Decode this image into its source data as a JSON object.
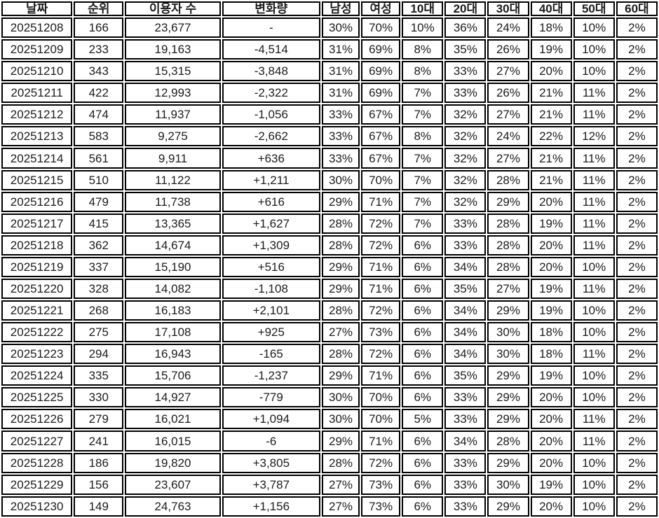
{
  "colors": {
    "text": "#1c1c1c",
    "border": "#000000",
    "background": "#ffffff",
    "weekend_saturday_blue": "#0e16f0",
    "weekend_sunday_red": "#f41212"
  },
  "chart_data": {
    "type": "table",
    "columns": [
      "날짜",
      "순위",
      "이용자 수",
      "변화량",
      "남성",
      "여성",
      "10대",
      "20대",
      "30대",
      "40대",
      "50대",
      "60대"
    ],
    "rows": [
      [
        "20251208",
        "166",
        "23,677",
        "-",
        "30%",
        "70%",
        "10%",
        "36%",
        "24%",
        "18%",
        "10%",
        "2%"
      ],
      [
        "20251209",
        "233",
        "19,163",
        "-4,514",
        "31%",
        "69%",
        "8%",
        "35%",
        "26%",
        "19%",
        "10%",
        "2%"
      ],
      [
        "20251210",
        "343",
        "15,315",
        "-3,848",
        "31%",
        "69%",
        "8%",
        "33%",
        "27%",
        "20%",
        "10%",
        "2%"
      ],
      [
        "20251211",
        "422",
        "12,993",
        "-2,322",
        "31%",
        "69%",
        "7%",
        "33%",
        "26%",
        "21%",
        "11%",
        "2%"
      ],
      [
        "20251212",
        "474",
        "11,937",
        "-1,056",
        "33%",
        "67%",
        "7%",
        "32%",
        "27%",
        "21%",
        "11%",
        "2%"
      ],
      [
        "20251213",
        "583",
        "9,275",
        "-2,662",
        "33%",
        "67%",
        "8%",
        "32%",
        "24%",
        "22%",
        "12%",
        "2%"
      ],
      [
        "20251214",
        "561",
        "9,911",
        "+636",
        "33%",
        "67%",
        "7%",
        "32%",
        "27%",
        "21%",
        "11%",
        "2%"
      ],
      [
        "20251215",
        "510",
        "11,122",
        "+1,211",
        "30%",
        "70%",
        "7%",
        "32%",
        "28%",
        "21%",
        "11%",
        "2%"
      ],
      [
        "20251216",
        "479",
        "11,738",
        "+616",
        "29%",
        "71%",
        "7%",
        "32%",
        "29%",
        "20%",
        "11%",
        "2%"
      ],
      [
        "20251217",
        "415",
        "13,365",
        "+1,627",
        "28%",
        "72%",
        "7%",
        "33%",
        "28%",
        "19%",
        "11%",
        "2%"
      ],
      [
        "20251218",
        "362",
        "14,674",
        "+1,309",
        "28%",
        "72%",
        "6%",
        "33%",
        "28%",
        "20%",
        "11%",
        "2%"
      ],
      [
        "20251219",
        "337",
        "15,190",
        "+516",
        "29%",
        "71%",
        "6%",
        "34%",
        "28%",
        "20%",
        "10%",
        "2%"
      ],
      [
        "20251220",
        "328",
        "14,082",
        "-1,108",
        "29%",
        "71%",
        "6%",
        "35%",
        "27%",
        "19%",
        "11%",
        "2%"
      ],
      [
        "20251221",
        "268",
        "16,183",
        "+2,101",
        "28%",
        "72%",
        "6%",
        "34%",
        "29%",
        "19%",
        "10%",
        "2%"
      ],
      [
        "20251222",
        "275",
        "17,108",
        "+925",
        "27%",
        "73%",
        "6%",
        "34%",
        "30%",
        "18%",
        "10%",
        "2%"
      ],
      [
        "20251223",
        "294",
        "16,943",
        "-165",
        "28%",
        "72%",
        "6%",
        "34%",
        "30%",
        "18%",
        "11%",
        "2%"
      ],
      [
        "20251224",
        "335",
        "15,706",
        "-1,237",
        "29%",
        "71%",
        "6%",
        "35%",
        "29%",
        "19%",
        "10%",
        "2%"
      ],
      [
        "20251225",
        "330",
        "14,927",
        "-779",
        "30%",
        "70%",
        "6%",
        "33%",
        "29%",
        "20%",
        "10%",
        "2%"
      ],
      [
        "20251226",
        "279",
        "16,021",
        "+1,094",
        "30%",
        "70%",
        "5%",
        "33%",
        "29%",
        "20%",
        "11%",
        "2%"
      ],
      [
        "20251227",
        "241",
        "16,015",
        "-6",
        "29%",
        "71%",
        "6%",
        "34%",
        "28%",
        "20%",
        "11%",
        "2%"
      ],
      [
        "20251228",
        "186",
        "19,820",
        "+3,805",
        "28%",
        "72%",
        "6%",
        "33%",
        "29%",
        "20%",
        "10%",
        "2%"
      ],
      [
        "20251229",
        "156",
        "23,607",
        "+3,787",
        "27%",
        "73%",
        "6%",
        "33%",
        "30%",
        "19%",
        "10%",
        "2%"
      ],
      [
        "20251230",
        "149",
        "24,763",
        "+1,156",
        "27%",
        "73%",
        "6%",
        "33%",
        "29%",
        "20%",
        "10%",
        "2%"
      ]
    ],
    "date_text_colors": [
      "default",
      "default",
      "default",
      "default",
      "default",
      "blue",
      "red",
      "default",
      "default",
      "default",
      "default",
      "default",
      "blue",
      "red",
      "default",
      "default",
      "default",
      "default",
      "default",
      "blue",
      "red",
      "default",
      "default"
    ],
    "change_text_colors": [
      "default",
      "blue",
      "blue",
      "blue",
      "blue",
      "blue",
      "red",
      "red",
      "red",
      "red",
      "red",
      "red",
      "blue",
      "red",
      "red",
      "blue",
      "blue",
      "blue",
      "red",
      "blue",
      "red",
      "red",
      "red"
    ]
  }
}
